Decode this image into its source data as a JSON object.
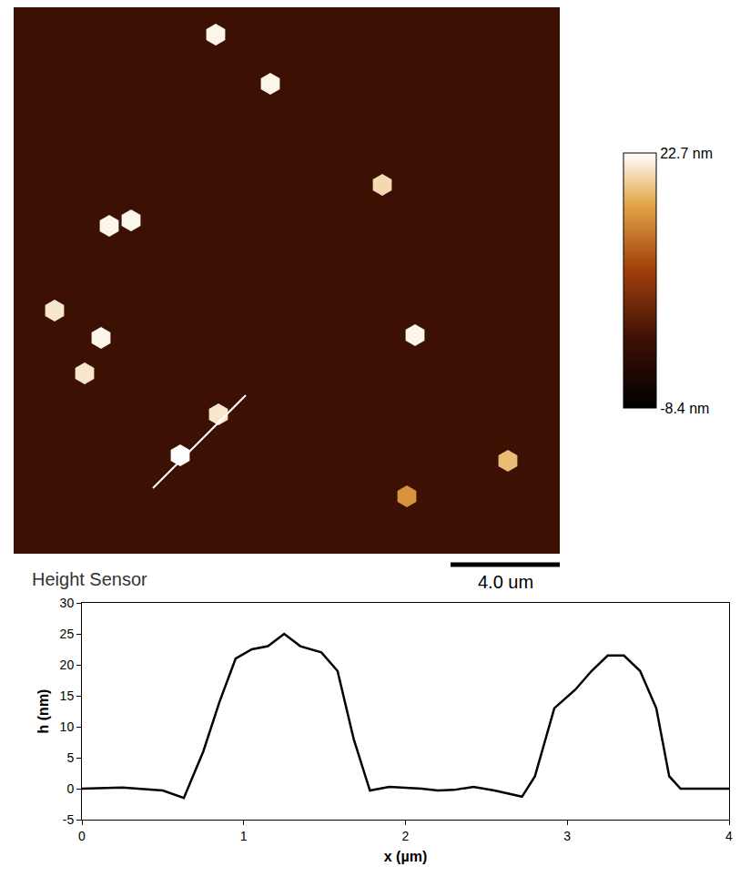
{
  "chart_data": [
    {
      "type": "scatter",
      "label": "Height Sensor",
      "x": [
        7.4,
        9.4,
        13.5,
        3.5,
        4.3,
        1.5,
        3.2,
        14.7,
        2.6,
        7.5,
        6.1,
        18.1,
        14.4
      ],
      "y": [
        19.0,
        17.2,
        13.5,
        12.0,
        12.2,
        8.9,
        7.9,
        8.0,
        6.6,
        5.1,
        3.6,
        3.4,
        2.1
      ],
      "heights": [
        22,
        22,
        20,
        22,
        22,
        21,
        22,
        22,
        21,
        21,
        24,
        18,
        15
      ],
      "marker": "hexagon",
      "xlim": [
        0,
        20
      ],
      "ylim": [
        0,
        20
      ],
      "tick_labels": false,
      "colorbar": {
        "range": [
          -8.4,
          22.7
        ],
        "ticks": [
          {
            "value": -8.4,
            "label": "-8.4 nm"
          },
          {
            "value": 22.7,
            "label": "22.7 nm"
          }
        ]
      },
      "profile_line": {
        "x": [
          5.1,
          8.5
        ],
        "y": [
          2.4,
          5.8
        ],
        "color": "#ffffff"
      },
      "scale_bar": {
        "length": 4.0,
        "label": "4.0 um"
      }
    },
    {
      "type": "line",
      "x_label": "x (µm)",
      "y_label": "h (nm)",
      "x": [
        0,
        0.25,
        0.5,
        0.63,
        0.75,
        0.85,
        0.95,
        1.05,
        1.15,
        1.25,
        1.35,
        1.48,
        1.58,
        1.68,
        1.78,
        1.9,
        2.1,
        2.2,
        2.3,
        2.42,
        2.55,
        2.72,
        2.8,
        2.92,
        3.05,
        3.15,
        3.25,
        3.35,
        3.45,
        3.55,
        3.63,
        3.7,
        3.85,
        4.0
      ],
      "values": [
        0,
        0.2,
        -0.3,
        -1.5,
        6,
        14,
        21,
        22.5,
        23,
        25,
        23,
        22,
        19,
        8,
        -0.3,
        0.3,
        0,
        -0.3,
        -0.2,
        0.3,
        -0.3,
        -1.3,
        2,
        13,
        16,
        19,
        21.5,
        21.5,
        19,
        13,
        2,
        0,
        0,
        0
      ],
      "color": "#000000",
      "xlim": [
        0,
        4
      ],
      "ylim": [
        -5,
        30
      ],
      "xticks": [
        0,
        1,
        2,
        3,
        4
      ],
      "yticks": [
        -5,
        0,
        5,
        10,
        15,
        20,
        25,
        30
      ]
    }
  ]
}
